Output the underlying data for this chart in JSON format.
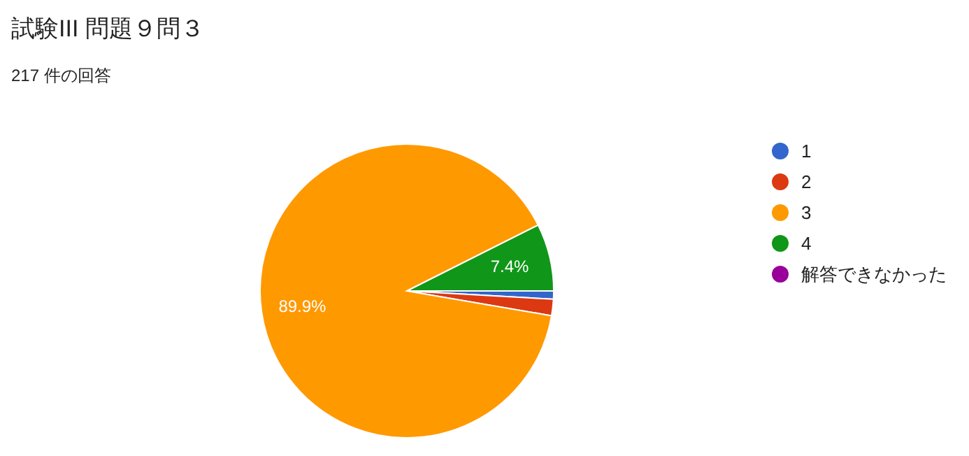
{
  "chart_data": {
    "type": "pie",
    "title": "試験III 問題９問３",
    "subtitle": "217 件の回答",
    "categories": [
      "1",
      "2",
      "3",
      "4",
      "解答できなかった"
    ],
    "values": [
      0.9,
      1.8,
      89.9,
      7.4,
      0
    ],
    "colors": [
      "#3366cc",
      "#dc3912",
      "#ff9900",
      "#109618",
      "#990099"
    ],
    "value_labels": [
      null,
      null,
      "89.9%",
      "7.4%",
      null
    ],
    "legend": "right"
  }
}
